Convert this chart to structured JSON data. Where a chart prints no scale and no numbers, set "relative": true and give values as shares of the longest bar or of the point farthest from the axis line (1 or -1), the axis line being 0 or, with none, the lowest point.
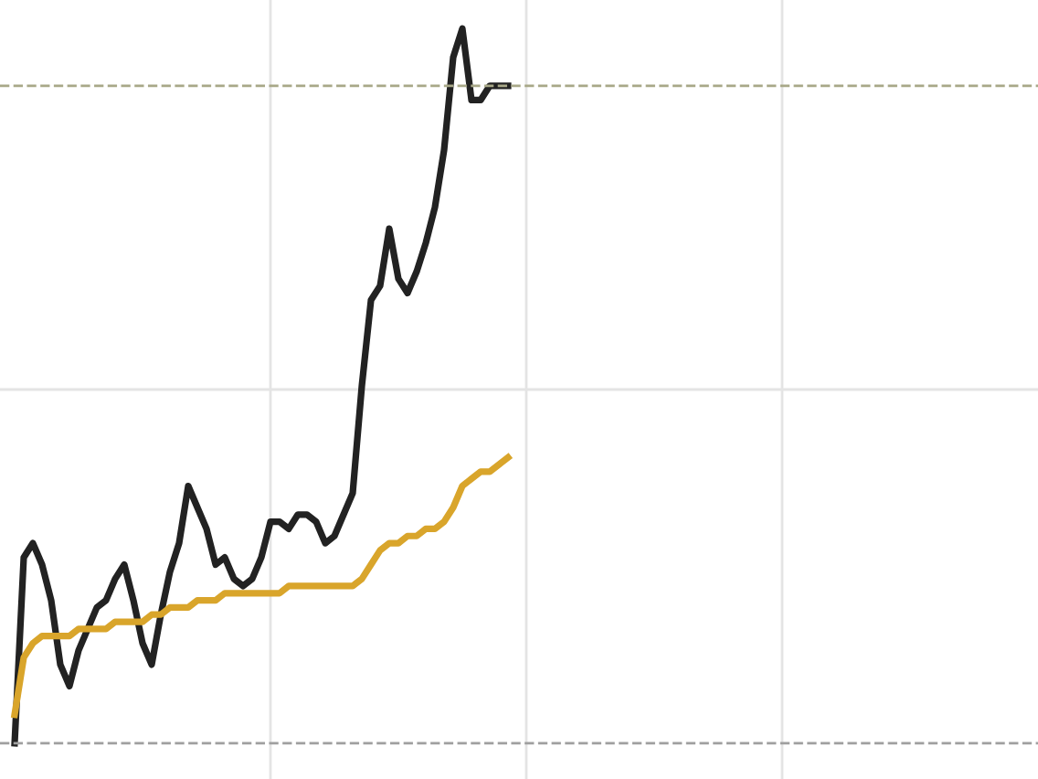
{
  "chart_data": {
    "type": "line",
    "relative": true,
    "grid": true,
    "marker": "none",
    "line_style": "solid",
    "categories": [
      null,
      null,
      null,
      null,
      null,
      null,
      null,
      null,
      null,
      null,
      null,
      null,
      null,
      null,
      null,
      null,
      null,
      null,
      null,
      null,
      null,
      null,
      null,
      null,
      null,
      null,
      null,
      null,
      null,
      null,
      null,
      null,
      null,
      null,
      null,
      null,
      null,
      null,
      null,
      null,
      null,
      null,
      null,
      null,
      null,
      null,
      null,
      null,
      null,
      null,
      null,
      null,
      null,
      null,
      null,
      null,
      null,
      null,
      null,
      null,
      null,
      null,
      null,
      null,
      null,
      null,
      null,
      null,
      null,
      null,
      null,
      null,
      null,
      null,
      null,
      null,
      null,
      null,
      null,
      null,
      null,
      null,
      null,
      null,
      null,
      null,
      null,
      null,
      null,
      null,
      null,
      null,
      null,
      null,
      null,
      null,
      null,
      null,
      null,
      null,
      null,
      null,
      null,
      null,
      null,
      null,
      null,
      null,
      null,
      null,
      null,
      null
    ],
    "series": [
      {
        "color": "#222222",
        "values": [
          0,
          0.26,
          0.28,
          0.25,
          0.2,
          0.11,
          0.08,
          0.13,
          0.16,
          0.19,
          0.2,
          0.23,
          0.25,
          0.2,
          0.14,
          0.11,
          0.18,
          0.24,
          0.28,
          0.36,
          0.33,
          0.3,
          0.25,
          0.26,
          0.23,
          0.22,
          0.23,
          0.26,
          0.31,
          0.31,
          0.3,
          0.32,
          0.32,
          0.31,
          0.28,
          0.29,
          0.32,
          0.35,
          0.5,
          0.62,
          0.64,
          0.72,
          0.65,
          0.63,
          0.66,
          0.7,
          0.75,
          0.83,
          0.96,
          1,
          0.9,
          0.9,
          0.92,
          0.92,
          0.92,
          null,
          null,
          null,
          null,
          null,
          null,
          null,
          null,
          null,
          null,
          null,
          null,
          null,
          null,
          null,
          null,
          null,
          null,
          null,
          null,
          null,
          null,
          null,
          null,
          null,
          null,
          null,
          null,
          null,
          null,
          null,
          null,
          null,
          null,
          null,
          null,
          null,
          null,
          null,
          null,
          null,
          null,
          null,
          null,
          null,
          null,
          null,
          null,
          null,
          null,
          null,
          null,
          null,
          null,
          null,
          null,
          null
        ]
      },
      {
        "color": "#d9a52b",
        "values": [
          0.04,
          0.12,
          0.14,
          0.15,
          0.15,
          0.15,
          0.15,
          0.16,
          0.16,
          0.16,
          0.16,
          0.17,
          0.17,
          0.17,
          0.17,
          0.18,
          0.18,
          0.19,
          0.19,
          0.19,
          0.2,
          0.2,
          0.2,
          0.21,
          0.21,
          0.21,
          0.21,
          0.21,
          0.21,
          0.21,
          0.22,
          0.22,
          0.22,
          0.22,
          0.22,
          0.22,
          0.22,
          0.22,
          0.23,
          0.25,
          0.27,
          0.28,
          0.28,
          0.29,
          0.29,
          0.3,
          0.3,
          0.31,
          0.33,
          0.36,
          0.37,
          0.38,
          0.38,
          0.39,
          0.4,
          null,
          null,
          null,
          null,
          null,
          null,
          null,
          null,
          null,
          null,
          null,
          null,
          null,
          null,
          null,
          null,
          null,
          null,
          null,
          null,
          null,
          null,
          null,
          null,
          null,
          null,
          null,
          null,
          null,
          null,
          null,
          null,
          null,
          null,
          null,
          null,
          null,
          null,
          null,
          null,
          null,
          null,
          null,
          null,
          null,
          null,
          null,
          null,
          null,
          null,
          null,
          null,
          null,
          null,
          null,
          null,
          null
        ]
      }
    ],
    "ref_lines": [
      {
        "axis": "y",
        "value": 0.92,
        "color": "#a8a888",
        "line_style": "dashed"
      },
      {
        "axis": "y",
        "value": 0,
        "color": "#a0a0a0",
        "line_style": "dashed"
      }
    ]
  }
}
